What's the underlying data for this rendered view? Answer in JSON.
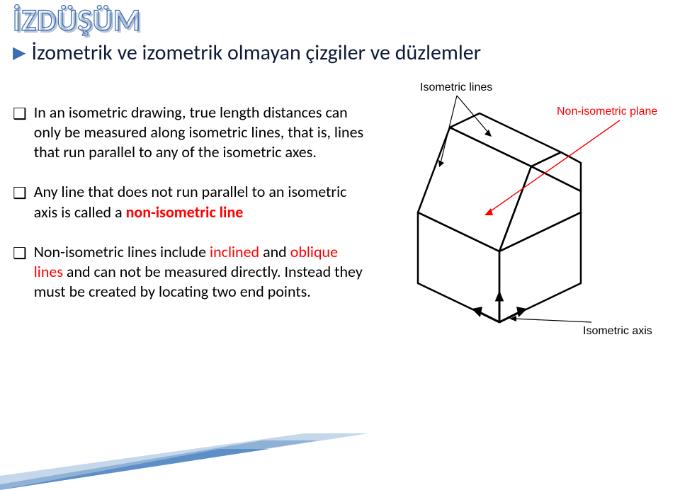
{
  "title": {
    "text": "İZDÜŞÜM",
    "fontsize": 44,
    "outline_color": "#3a6fb0",
    "fill_color": "#3a6fb0",
    "shadow_color": "#b8c4d8"
  },
  "subtitle": {
    "marker": "▶",
    "text": "İzometrik ve izometrik olmayan çizgiler ve düzlemler",
    "fontsize": 30,
    "color": "#0f1a3a",
    "marker_color": "#3a6fb0"
  },
  "bullets": [
    {
      "marker": "❑",
      "runs": [
        {
          "t": "In an isometric drawing, true length distances can only be measured along isometric lines, that is, lines that run parallel to any of the isometric axes.",
          "style": "plain"
        }
      ]
    },
    {
      "marker": "❑",
      "runs": [
        {
          "t": "Any line that does not run parallel to an isometric axis is called a ",
          "style": "plain"
        },
        {
          "t": "non-isometric line",
          "style": "redbold"
        }
      ]
    },
    {
      "marker": "❑",
      "runs": [
        {
          "t": "Non-isometric lines include ",
          "style": "plain"
        },
        {
          "t": "inclined",
          "style": "redplain"
        },
        {
          "t": " and ",
          "style": "plain"
        },
        {
          "t": "oblique lines",
          "style": "redplain"
        },
        {
          "t": " and can not be measured directly. Instead they must be created by locating two end points.",
          "style": "plain"
        }
      ]
    }
  ],
  "bullet_style": {
    "fontsize": 22,
    "marker_color": "#000000",
    "text_color": "#000000",
    "red_color": "#ff0000"
  },
  "diagram": {
    "labels": {
      "iso_lines": "Isometric lines",
      "non_iso_plane": "Non-isometric plane",
      "iso_axis": "Isometric axis"
    },
    "label_iso_lines_color": "#000000",
    "label_non_iso_plane_color": "#ff0000",
    "label_iso_axis_color": "#000000",
    "label_fontsize": 16,
    "line_color": "#000000",
    "line_width": 2,
    "leader_color_red": "#ff0000",
    "leader_color_black": "#000000"
  },
  "accent": {
    "colors": [
      "#c5d7ea",
      "#8fb1d6",
      "#5d8fc6"
    ]
  }
}
